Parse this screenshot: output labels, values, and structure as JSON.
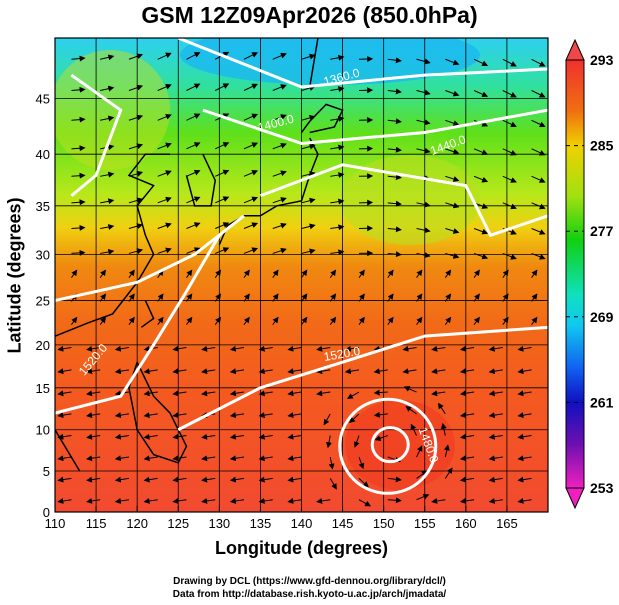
{
  "title": "GSM 12Z09Apr2026 (850.0hPa)",
  "xaxis": {
    "label": "Longitude (degrees)",
    "ticks": [
      "110",
      "115",
      "120",
      "125",
      "130",
      "135",
      "140",
      "145",
      "150",
      "155",
      "160",
      "165"
    ],
    "range": [
      110,
      170
    ]
  },
  "yaxis": {
    "label": "Latitude  (degrees)",
    "ticks": [
      "0",
      "5",
      "10",
      "15",
      "20",
      "25",
      "30",
      "35",
      "40",
      "45"
    ],
    "range": [
      0,
      50
    ]
  },
  "colorbar": {
    "labels": [
      "293",
      "285",
      "277",
      "269",
      "261",
      "253"
    ],
    "range": [
      253,
      293
    ]
  },
  "contour_labels": [
    "1360.0",
    "1400.0",
    "1440.0",
    "1520.0",
    "1520.0",
    "1480.0"
  ],
  "footer": {
    "line1": "Drawing by DCL (https://www.gfd-dennou.org/library/dcl/)",
    "line2": "Data from http://database.rish.kyoto-u.ac.jp/arch/jmadata/"
  }
}
